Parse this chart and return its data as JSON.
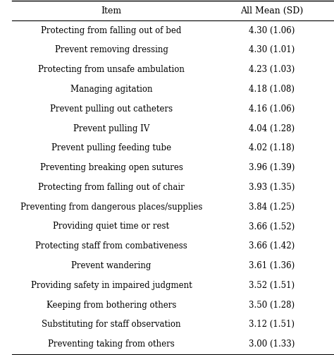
{
  "headers": [
    "Item",
    "All Mean (SD)"
  ],
  "rows": [
    [
      "Protecting from falling out of bed",
      "4.30 (1.06)"
    ],
    [
      "Prevent removing dressing",
      "4.30 (1.01)"
    ],
    [
      "Protecting from unsafe ambulation",
      "4.23 (1.03)"
    ],
    [
      "Managing agitation",
      "4.18 (1.08)"
    ],
    [
      "Prevent pulling out catheters",
      "4.16 (1.06)"
    ],
    [
      "Prevent pulling IV",
      "4.04 (1.28)"
    ],
    [
      "Prevent pulling feeding tube",
      "4.02 (1.18)"
    ],
    [
      "Preventing breaking open sutures",
      "3.96 (1.39)"
    ],
    [
      "Protecting from falling out of chair",
      "3.93 (1.35)"
    ],
    [
      "Preventing from dangerous places/supplies",
      "3.84 (1.25)"
    ],
    [
      "Providing quiet time or rest",
      "3.66 (1.52)"
    ],
    [
      "Protecting staff from combativeness",
      "3.66 (1.42)"
    ],
    [
      "Prevent wandering",
      "3.61 (1.36)"
    ],
    [
      "Providing safety in impaired judgment",
      "3.52 (1.51)"
    ],
    [
      "Keeping from bothering others",
      "3.50 (1.28)"
    ],
    [
      "Substituting for staff observation",
      "3.12 (1.51)"
    ],
    [
      "Preventing taking from others",
      "3.00 (1.33)"
    ]
  ],
  "bg_color": "#ffffff",
  "header_line_color": "#000000",
  "text_color": "#000000",
  "font_size": 8.5,
  "header_font_size": 9.0,
  "col_split": 0.62
}
